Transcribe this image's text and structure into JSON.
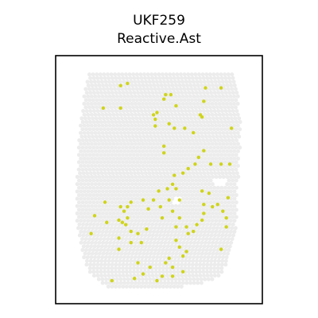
{
  "chart_data": {
    "type": "scatter",
    "title": "UKF259",
    "subtitle": "Reactive.Ast",
    "xlabel": "",
    "ylabel": "",
    "grid": false,
    "colors": {
      "tissue": "#ececec",
      "highlight": "#cfd41b",
      "frame": "#000000"
    },
    "tissue": {
      "grid_step": 4.6,
      "rows": [
        [
          0.02,
          0.08,
          0.92
        ],
        [
          0.05,
          0.07,
          0.93
        ],
        [
          0.08,
          0.06,
          0.93
        ],
        [
          0.12,
          0.05,
          0.94
        ],
        [
          0.16,
          0.05,
          0.94
        ],
        [
          0.2,
          0.04,
          0.95
        ],
        [
          0.24,
          0.03,
          0.95
        ],
        [
          0.28,
          0.03,
          0.95
        ],
        [
          0.32,
          0.02,
          0.95
        ],
        [
          0.36,
          0.02,
          0.95
        ],
        [
          0.4,
          0.02,
          0.94
        ],
        [
          0.44,
          0.02,
          0.94
        ],
        [
          0.48,
          0.01,
          0.94
        ],
        [
          0.52,
          0.01,
          0.93
        ],
        [
          0.56,
          0.01,
          0.93
        ],
        [
          0.6,
          0.01,
          0.93
        ],
        [
          0.64,
          0.01,
          0.93
        ],
        [
          0.68,
          0.01,
          0.93
        ],
        [
          0.72,
          0.02,
          0.92
        ],
        [
          0.76,
          0.03,
          0.91
        ],
        [
          0.8,
          0.04,
          0.9
        ],
        [
          0.84,
          0.05,
          0.89
        ],
        [
          0.88,
          0.07,
          0.86
        ],
        [
          0.91,
          0.09,
          0.84
        ],
        [
          0.94,
          0.12,
          0.8
        ],
        [
          0.97,
          0.2,
          0.6
        ]
      ],
      "holes": [
        [
          0.8,
          0.48,
          0.87,
          0.52
        ],
        [
          0.56,
          0.56,
          0.61,
          0.6
        ],
        [
          0.86,
          0.88,
          0.9,
          0.92
        ],
        [
          0.08,
          0.92,
          0.13,
          0.95
        ],
        [
          0.04,
          0.02,
          0.07,
          0.05
        ]
      ]
    },
    "points": [
      {
        "x": 0.26,
        "y": 0.07
      },
      {
        "x": 0.3,
        "y": 0.06
      },
      {
        "x": 0.52,
        "y": 0.11
      },
      {
        "x": 0.55,
        "y": 0.11
      },
      {
        "x": 0.51,
        "y": 0.13
      },
      {
        "x": 0.58,
        "y": 0.16
      },
      {
        "x": 0.75,
        "y": 0.08
      },
      {
        "x": 0.84,
        "y": 0.08
      },
      {
        "x": 0.16,
        "y": 0.17
      },
      {
        "x": 0.26,
        "y": 0.17
      },
      {
        "x": 0.74,
        "y": 0.14
      },
      {
        "x": 0.72,
        "y": 0.2
      },
      {
        "x": 0.73,
        "y": 0.21
      },
      {
        "x": 0.45,
        "y": 0.2
      },
      {
        "x": 0.46,
        "y": 0.22
      },
      {
        "x": 0.47,
        "y": 0.19
      },
      {
        "x": 0.46,
        "y": 0.25
      },
      {
        "x": 0.54,
        "y": 0.24
      },
      {
        "x": 0.57,
        "y": 0.26
      },
      {
        "x": 0.63,
        "y": 0.26
      },
      {
        "x": 0.68,
        "y": 0.28
      },
      {
        "x": 0.9,
        "y": 0.26
      },
      {
        "x": 0.51,
        "y": 0.34
      },
      {
        "x": 0.51,
        "y": 0.37
      },
      {
        "x": 0.74,
        "y": 0.36
      },
      {
        "x": 0.71,
        "y": 0.39
      },
      {
        "x": 0.69,
        "y": 0.42
      },
      {
        "x": 0.65,
        "y": 0.44
      },
      {
        "x": 0.62,
        "y": 0.46
      },
      {
        "x": 0.78,
        "y": 0.42
      },
      {
        "x": 0.84,
        "y": 0.42
      },
      {
        "x": 0.89,
        "y": 0.42
      },
      {
        "x": 0.57,
        "y": 0.47
      },
      {
        "x": 0.56,
        "y": 0.51
      },
      {
        "x": 0.53,
        "y": 0.53
      },
      {
        "x": 0.58,
        "y": 0.53
      },
      {
        "x": 0.48,
        "y": 0.54
      },
      {
        "x": 0.45,
        "y": 0.58
      },
      {
        "x": 0.39,
        "y": 0.58
      },
      {
        "x": 0.42,
        "y": 0.62
      },
      {
        "x": 0.49,
        "y": 0.61
      },
      {
        "x": 0.54,
        "y": 0.58
      },
      {
        "x": 0.6,
        "y": 0.58
      },
      {
        "x": 0.56,
        "y": 0.63
      },
      {
        "x": 0.5,
        "y": 0.66
      },
      {
        "x": 0.73,
        "y": 0.54
      },
      {
        "x": 0.77,
        "y": 0.55
      },
      {
        "x": 0.88,
        "y": 0.57
      },
      {
        "x": 0.79,
        "y": 0.61
      },
      {
        "x": 0.82,
        "y": 0.6
      },
      {
        "x": 0.74,
        "y": 0.6
      },
      {
        "x": 0.85,
        "y": 0.63
      },
      {
        "x": 0.74,
        "y": 0.64
      },
      {
        "x": 0.73,
        "y": 0.67
      },
      {
        "x": 0.87,
        "y": 0.66
      },
      {
        "x": 0.6,
        "y": 0.66
      },
      {
        "x": 0.7,
        "y": 0.69
      },
      {
        "x": 0.64,
        "y": 0.7
      },
      {
        "x": 0.58,
        "y": 0.7
      },
      {
        "x": 0.65,
        "y": 0.73
      },
      {
        "x": 0.58,
        "y": 0.76
      },
      {
        "x": 0.6,
        "y": 0.79
      },
      {
        "x": 0.64,
        "y": 0.81
      },
      {
        "x": 0.62,
        "y": 0.83
      },
      {
        "x": 0.54,
        "y": 0.84
      },
      {
        "x": 0.52,
        "y": 0.86
      },
      {
        "x": 0.56,
        "y": 0.88
      },
      {
        "x": 0.62,
        "y": 0.9
      },
      {
        "x": 0.56,
        "y": 0.92
      },
      {
        "x": 0.5,
        "y": 0.92
      },
      {
        "x": 0.43,
        "y": 0.88
      },
      {
        "x": 0.39,
        "y": 0.91
      },
      {
        "x": 0.47,
        "y": 0.94
      },
      {
        "x": 0.34,
        "y": 0.93
      },
      {
        "x": 0.21,
        "y": 0.94
      },
      {
        "x": 0.17,
        "y": 0.59
      },
      {
        "x": 0.11,
        "y": 0.65
      },
      {
        "x": 0.18,
        "y": 0.68
      },
      {
        "x": 0.26,
        "y": 0.61
      },
      {
        "x": 0.28,
        "y": 0.63
      },
      {
        "x": 0.3,
        "y": 0.61
      },
      {
        "x": 0.32,
        "y": 0.59
      },
      {
        "x": 0.3,
        "y": 0.66
      },
      {
        "x": 0.27,
        "y": 0.68
      },
      {
        "x": 0.29,
        "y": 0.69
      },
      {
        "x": 0.25,
        "y": 0.67
      },
      {
        "x": 0.32,
        "y": 0.72
      },
      {
        "x": 0.36,
        "y": 0.73
      },
      {
        "x": 0.25,
        "y": 0.75
      },
      {
        "x": 0.32,
        "y": 0.77
      },
      {
        "x": 0.38,
        "y": 0.77
      },
      {
        "x": 0.41,
        "y": 0.71
      },
      {
        "x": 0.09,
        "y": 0.73
      },
      {
        "x": 0.25,
        "y": 0.8
      },
      {
        "x": 0.36,
        "y": 0.86
      },
      {
        "x": 0.68,
        "y": 0.72
      },
      {
        "x": 0.87,
        "y": 0.7
      },
      {
        "x": 0.84,
        "y": 0.8
      }
    ]
  }
}
